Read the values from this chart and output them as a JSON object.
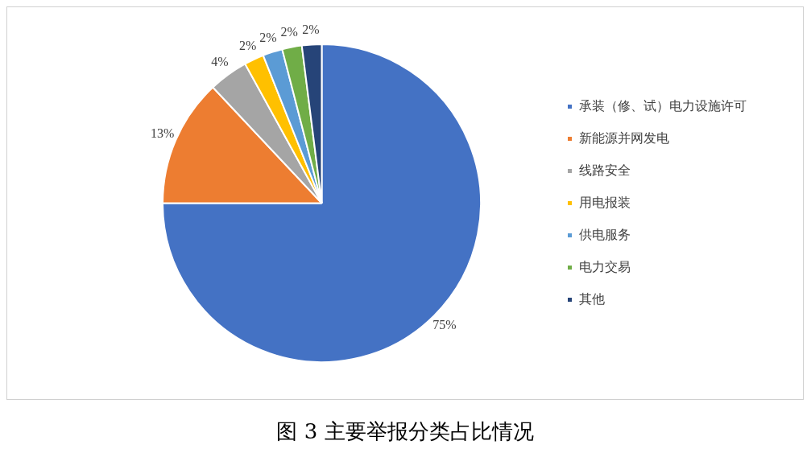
{
  "chart_data": {
    "type": "pie",
    "title": "图 3 主要举报分类占比情况",
    "categories": [
      "承装（修、试）电力设施许可",
      "新能源并网发电",
      "线路安全",
      "用电报装",
      "供电服务",
      "电力交易",
      "其他"
    ],
    "values": [
      75,
      13,
      4,
      2,
      2,
      2,
      2
    ],
    "value_labels": [
      "75%",
      "13%",
      "4%",
      "2%",
      "2%",
      "2%",
      "2%"
    ],
    "colors": [
      "#4472c4",
      "#ed7d31",
      "#a5a5a5",
      "#ffc000",
      "#5b9bd5",
      "#70ad47",
      "#264478"
    ],
    "legend": "right"
  }
}
